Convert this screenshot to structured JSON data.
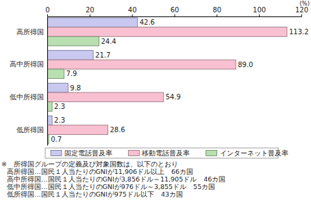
{
  "chart_data": {
    "type": "bar",
    "orientation": "horizontal",
    "categories": [
      "高所得国",
      "高中所得国",
      "低中所得国",
      "低所得国"
    ],
    "series": [
      {
        "name": "固定電話普及率",
        "color": "#c8c8f0",
        "values": [
          42.6,
          21.7,
          9.8,
          2.3
        ]
      },
      {
        "name": "移動電話普及率",
        "color": "#f8c0d0",
        "values": [
          113.2,
          89.0,
          54.9,
          28.6
        ],
        "value_labels": [
          "113.2",
          "89.0",
          "54.9",
          "28.6"
        ]
      },
      {
        "name": "インターネット普及率",
        "color": "#b8e0b0",
        "values": [
          24.4,
          7.9,
          2.3,
          0.7
        ]
      }
    ],
    "x_label": "(%)",
    "xlim": [
      0,
      120
    ],
    "xticks": [
      0,
      20,
      40,
      60,
      80,
      100,
      120
    ],
    "grid": false,
    "data_labels": true,
    "legend": "bottom",
    "annotations": [
      "※　所得国グループの定義及び対象国数は、以下のとおり",
      "高所得国…国民１人当たりのGNIが11,906ドル以上　66カ国",
      "高中所得国…国民１人当たりのGNIが3,856ドル～11,905ドル　46カ国",
      "低中所得国…国民１人当たりのGNIが976ドル～3,855ドル　55カ国",
      "低所得国…国民１人当たりのGNIが975ドル以下　43カ国"
    ]
  }
}
